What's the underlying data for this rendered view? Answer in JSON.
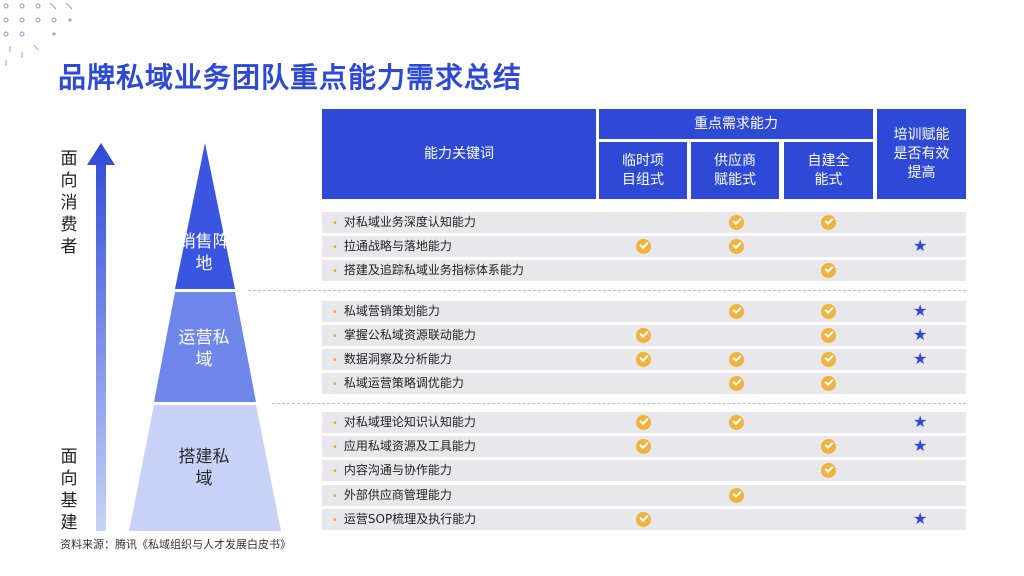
{
  "title": "品牌私域业务团队重点能力需求总结",
  "left": {
    "top_label": "面向消费者",
    "bottom_label": "面向基建",
    "levels": [
      "销售阵地",
      "运营私域",
      "搭建私域"
    ]
  },
  "table": {
    "keyword_header": "能力关键词",
    "group_header": "重点需求能力",
    "sub_headers": [
      "临时项目组式",
      "供应商赋能式",
      "自建全能式"
    ],
    "training_header": "培训赋能是否有效提高",
    "rows": [
      {
        "label": "对私域业务深度认知能力",
        "cols": [
          false,
          true,
          true
        ],
        "star": false
      },
      {
        "label": "拉通战略与落地能力",
        "cols": [
          true,
          true,
          false
        ],
        "star": true
      },
      {
        "label": "搭建及追踪私域业务指标体系能力",
        "cols": [
          false,
          false,
          true
        ],
        "star": false
      },
      {
        "label": "私域营销策划能力",
        "cols": [
          false,
          true,
          true
        ],
        "star": true
      },
      {
        "label": "掌握公私域资源联动能力",
        "cols": [
          true,
          false,
          true
        ],
        "star": true
      },
      {
        "label": "数据洞察及分析能力",
        "cols": [
          true,
          true,
          true
        ],
        "star": true
      },
      {
        "label": "私域运营策略调优能力",
        "cols": [
          false,
          true,
          true
        ],
        "star": false
      },
      {
        "label": "对私域理论知识认知能力",
        "cols": [
          true,
          true,
          false
        ],
        "star": true
      },
      {
        "label": "应用私域资源及工具能力",
        "cols": [
          true,
          false,
          true
        ],
        "star": true
      },
      {
        "label": "内容沟通与协作能力",
        "cols": [
          false,
          false,
          true
        ],
        "star": false
      },
      {
        "label": "外部供应商管理能力",
        "cols": [
          false,
          true,
          false
        ],
        "star": false
      },
      {
        "label": "运营SOP梳理及执行能力",
        "cols": [
          true,
          false,
          false
        ],
        "star": true
      }
    ]
  },
  "source": "资料来源：腾讯《私域组织与人才发展白皮书》",
  "colors": {
    "accent": "#2d49d6",
    "check": "#f2b33c",
    "row_bg": "#e8e8ec",
    "pyramid_top": "#3a56e0",
    "pyramid_mid": "#6f86ea",
    "pyramid_bottom": "#c8d2f8"
  },
  "icons": {
    "check": "check-circle-icon",
    "star": "star-icon",
    "arrow": "up-arrow-icon"
  }
}
